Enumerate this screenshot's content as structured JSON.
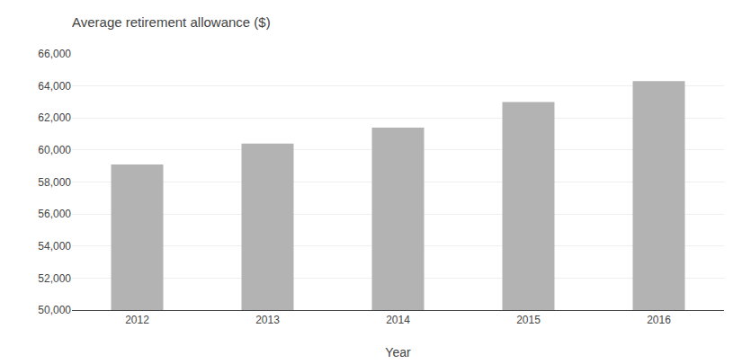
{
  "chart_data": {
    "type": "bar",
    "title": "Average retirement allowance ($)",
    "xlabel": "Year",
    "categories": [
      "2012",
      "2013",
      "2014",
      "2015",
      "2016"
    ],
    "values": [
      59100,
      60400,
      61400,
      63000,
      64300
    ],
    "color": "#b3b3b3",
    "ylim": [
      50000,
      66000
    ],
    "yticks": [
      {
        "value": 50000,
        "label": "50,000"
      },
      {
        "value": 52000,
        "label": "52,000"
      },
      {
        "value": 54000,
        "label": "54,000"
      },
      {
        "value": 56000,
        "label": "56,000"
      },
      {
        "value": 58000,
        "label": "58,000"
      },
      {
        "value": 60000,
        "label": "60,000"
      },
      {
        "value": 62000,
        "label": "62,000"
      },
      {
        "value": 64000,
        "label": "64,000"
      },
      {
        "value": 66000,
        "label": "66,000"
      }
    ],
    "grid": true
  }
}
